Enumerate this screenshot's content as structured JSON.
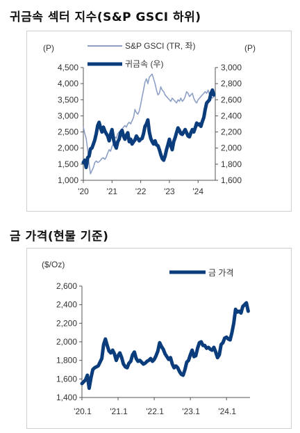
{
  "chart_data": [
    {
      "type": "line",
      "title": "귀금속 섹터 지수(S&P GSCI 하위)",
      "y_left_unit": "(P)",
      "y_right_unit": "(P)",
      "y_left_ticks": [
        "4,500",
        "4,000",
        "3,500",
        "3,000",
        "2,500",
        "2,000",
        "1,500",
        "1,000"
      ],
      "y_right_ticks": [
        "3,000",
        "2,800",
        "2,600",
        "2,400",
        "2,200",
        "2,000",
        "1,800",
        "1,600"
      ],
      "ylim_left": [
        1000,
        4500
      ],
      "ylim_right": [
        1600,
        3000
      ],
      "x_ticks": [
        "'20",
        "'21",
        "'22",
        "'23",
        "'24"
      ],
      "xlim": [
        2020.0,
        2024.6
      ],
      "legend": [
        "S&P GSCI (TR, 좌)",
        "귀금속 (우)"
      ],
      "series": [
        {
          "name": "S&P GSCI (TR, 좌)",
          "axis": "left",
          "color": "#8e9fc6",
          "x": [
            2020.0,
            2020.05,
            2020.1,
            2020.15,
            2020.2,
            2020.25,
            2020.3,
            2020.35,
            2020.4,
            2020.45,
            2020.5,
            2020.55,
            2020.6,
            2020.65,
            2020.7,
            2020.75,
            2020.8,
            2020.85,
            2020.9,
            2020.95,
            2021.0,
            2021.05,
            2021.1,
            2021.15,
            2021.2,
            2021.25,
            2021.3,
            2021.35,
            2021.4,
            2021.45,
            2021.5,
            2021.55,
            2021.6,
            2021.65,
            2021.7,
            2021.75,
            2021.8,
            2021.85,
            2021.9,
            2021.95,
            2022.0,
            2022.05,
            2022.1,
            2022.15,
            2022.2,
            2022.25,
            2022.3,
            2022.35,
            2022.4,
            2022.45,
            2022.5,
            2022.55,
            2022.6,
            2022.65,
            2022.7,
            2022.75,
            2022.8,
            2022.85,
            2022.9,
            2022.95,
            2023.0,
            2023.05,
            2023.1,
            2023.15,
            2023.2,
            2023.25,
            2023.3,
            2023.35,
            2023.4,
            2023.45,
            2023.5,
            2023.55,
            2023.6,
            2023.65,
            2023.7,
            2023.75,
            2023.8,
            2023.85,
            2023.9,
            2023.95,
            2024.0,
            2024.05,
            2024.1,
            2024.15,
            2024.2,
            2024.25,
            2024.3,
            2024.35,
            2024.4,
            2024.45,
            2024.5,
            2024.55
          ],
          "values": [
            2650,
            2450,
            2300,
            1950,
            1500,
            1200,
            1300,
            1400,
            1550,
            1600,
            1550,
            1580,
            1620,
            1680,
            1700,
            1650,
            1720,
            1850,
            1950,
            1900,
            2050,
            2150,
            2350,
            2300,
            2450,
            2500,
            2550,
            2600,
            2650,
            2700,
            2650,
            2750,
            2800,
            2750,
            2850,
            2950,
            3200,
            3100,
            3050,
            3150,
            3350,
            3600,
            3800,
            4050,
            4150,
            4000,
            4200,
            4250,
            4300,
            4150,
            4000,
            3800,
            3650,
            3700,
            3900,
            3800,
            3750,
            3650,
            3600,
            3550,
            3500,
            3450,
            3550,
            3500,
            3450,
            3400,
            3500,
            3450,
            3550,
            3450,
            3500,
            3600,
            3750,
            3700,
            3600,
            3650,
            3700,
            3550,
            3450,
            3400,
            3500,
            3550,
            3600,
            3650,
            3700,
            3750,
            3700,
            3800,
            3650,
            3600,
            3550,
            3600
          ]
        },
        {
          "name": "귀금속 (우)",
          "axis": "right",
          "color": "#0b3d7c",
          "x": [
            2020.0,
            2020.05,
            2020.1,
            2020.15,
            2020.2,
            2020.25,
            2020.3,
            2020.35,
            2020.4,
            2020.45,
            2020.5,
            2020.55,
            2020.6,
            2020.65,
            2020.7,
            2020.75,
            2020.8,
            2020.85,
            2020.9,
            2020.95,
            2021.0,
            2021.05,
            2021.1,
            2021.15,
            2021.2,
            2021.25,
            2021.3,
            2021.35,
            2021.4,
            2021.45,
            2021.5,
            2021.55,
            2021.6,
            2021.65,
            2021.7,
            2021.75,
            2021.8,
            2021.85,
            2021.9,
            2021.95,
            2022.0,
            2022.05,
            2022.1,
            2022.15,
            2022.2,
            2022.25,
            2022.3,
            2022.35,
            2022.4,
            2022.45,
            2022.5,
            2022.55,
            2022.6,
            2022.65,
            2022.7,
            2022.75,
            2022.8,
            2022.85,
            2022.9,
            2022.95,
            2023.0,
            2023.05,
            2023.1,
            2023.15,
            2023.2,
            2023.25,
            2023.3,
            2023.35,
            2023.4,
            2023.45,
            2023.5,
            2023.55,
            2023.6,
            2023.65,
            2023.7,
            2023.75,
            2023.8,
            2023.85,
            2023.9,
            2023.95,
            2024.0,
            2024.05,
            2024.1,
            2024.15,
            2024.2,
            2024.25,
            2024.3,
            2024.35,
            2024.4,
            2024.45,
            2024.5,
            2024.55
          ],
          "values": [
            1820,
            1850,
            1760,
            1880,
            1900,
            1990,
            2000,
            2050,
            2100,
            2180,
            2280,
            2320,
            2250,
            2200,
            2260,
            2210,
            2180,
            2150,
            2090,
            2170,
            2230,
            2110,
            2040,
            2000,
            2080,
            2110,
            2190,
            2220,
            2150,
            2110,
            2160,
            2190,
            2080,
            2110,
            2050,
            2080,
            2100,
            2150,
            2120,
            2090,
            2110,
            2120,
            2180,
            2270,
            2300,
            2350,
            2200,
            2120,
            2080,
            2050,
            2090,
            2040,
            2030,
            1980,
            1920,
            1870,
            1850,
            1900,
            1980,
            2040,
            2110,
            2030,
            1980,
            2080,
            2130,
            2190,
            2250,
            2220,
            2180,
            2170,
            2200,
            2230,
            2190,
            2150,
            2140,
            2190,
            2230,
            2200,
            2250,
            2310,
            2290,
            2300,
            2270,
            2330,
            2380,
            2480,
            2560,
            2580,
            2600,
            2680,
            2720,
            2660
          ]
        }
      ]
    },
    {
      "type": "line",
      "title": "금 가격(현물 기준)",
      "y_unit": "($/Oz)",
      "y_ticks": [
        "2,600",
        "2,400",
        "2,200",
        "2,000",
        "1,800",
        "1,600",
        "1,400"
      ],
      "ylim": [
        1400,
        2600
      ],
      "x_ticks": [
        "'20.1",
        "'21.1",
        "'22.1",
        "'23.1",
        "'24.1"
      ],
      "xlim": [
        2020.0,
        2024.65
      ],
      "legend": [
        "금 가격"
      ],
      "series": [
        {
          "name": "금 가격",
          "color": "#0b3d7c",
          "x": [
            2020.0,
            2020.05,
            2020.1,
            2020.15,
            2020.2,
            2020.25,
            2020.3,
            2020.35,
            2020.4,
            2020.45,
            2020.5,
            2020.55,
            2020.6,
            2020.65,
            2020.7,
            2020.75,
            2020.8,
            2020.85,
            2020.9,
            2020.95,
            2021.0,
            2021.05,
            2021.1,
            2021.15,
            2021.2,
            2021.25,
            2021.3,
            2021.35,
            2021.4,
            2021.45,
            2021.5,
            2021.55,
            2021.6,
            2021.65,
            2021.7,
            2021.75,
            2021.8,
            2021.85,
            2021.9,
            2021.95,
            2022.0,
            2022.05,
            2022.1,
            2022.15,
            2022.2,
            2022.25,
            2022.3,
            2022.35,
            2022.4,
            2022.45,
            2022.5,
            2022.55,
            2022.6,
            2022.65,
            2022.7,
            2022.75,
            2022.8,
            2022.85,
            2022.9,
            2022.95,
            2023.0,
            2023.05,
            2023.1,
            2023.15,
            2023.2,
            2023.25,
            2023.3,
            2023.35,
            2023.4,
            2023.45,
            2023.5,
            2023.55,
            2023.6,
            2023.65,
            2023.7,
            2023.75,
            2023.8,
            2023.85,
            2023.9,
            2023.95,
            2024.0,
            2024.05,
            2024.1,
            2024.15,
            2024.2,
            2024.25,
            2024.3,
            2024.35,
            2024.4,
            2024.45,
            2024.5,
            2024.55,
            2024.6
          ],
          "values": [
            1550,
            1570,
            1590,
            1640,
            1500,
            1610,
            1700,
            1720,
            1730,
            1740,
            1780,
            1820,
            1970,
            2030,
            1960,
            1900,
            1880,
            1910,
            1870,
            1800,
            1850,
            1880,
            1830,
            1760,
            1730,
            1720,
            1770,
            1790,
            1860,
            1890,
            1820,
            1790,
            1800,
            1780,
            1760,
            1770,
            1790,
            1800,
            1820,
            1790,
            1810,
            1850,
            1900,
            1990,
            1950,
            1920,
            1870,
            1840,
            1810,
            1830,
            1760,
            1720,
            1740,
            1720,
            1680,
            1650,
            1640,
            1700,
            1780,
            1800,
            1860,
            1910,
            1840,
            1850,
            1930,
            1990,
            2000,
            1960,
            1960,
            1930,
            1940,
            1920,
            1910,
            1940,
            1890,
            1830,
            1860,
            1970,
            1990,
            2040,
            2050,
            2030,
            2020,
            2100,
            2200,
            2350,
            2320,
            2330,
            2310,
            2380,
            2400,
            2420,
            2330
          ]
        }
      ]
    }
  ]
}
